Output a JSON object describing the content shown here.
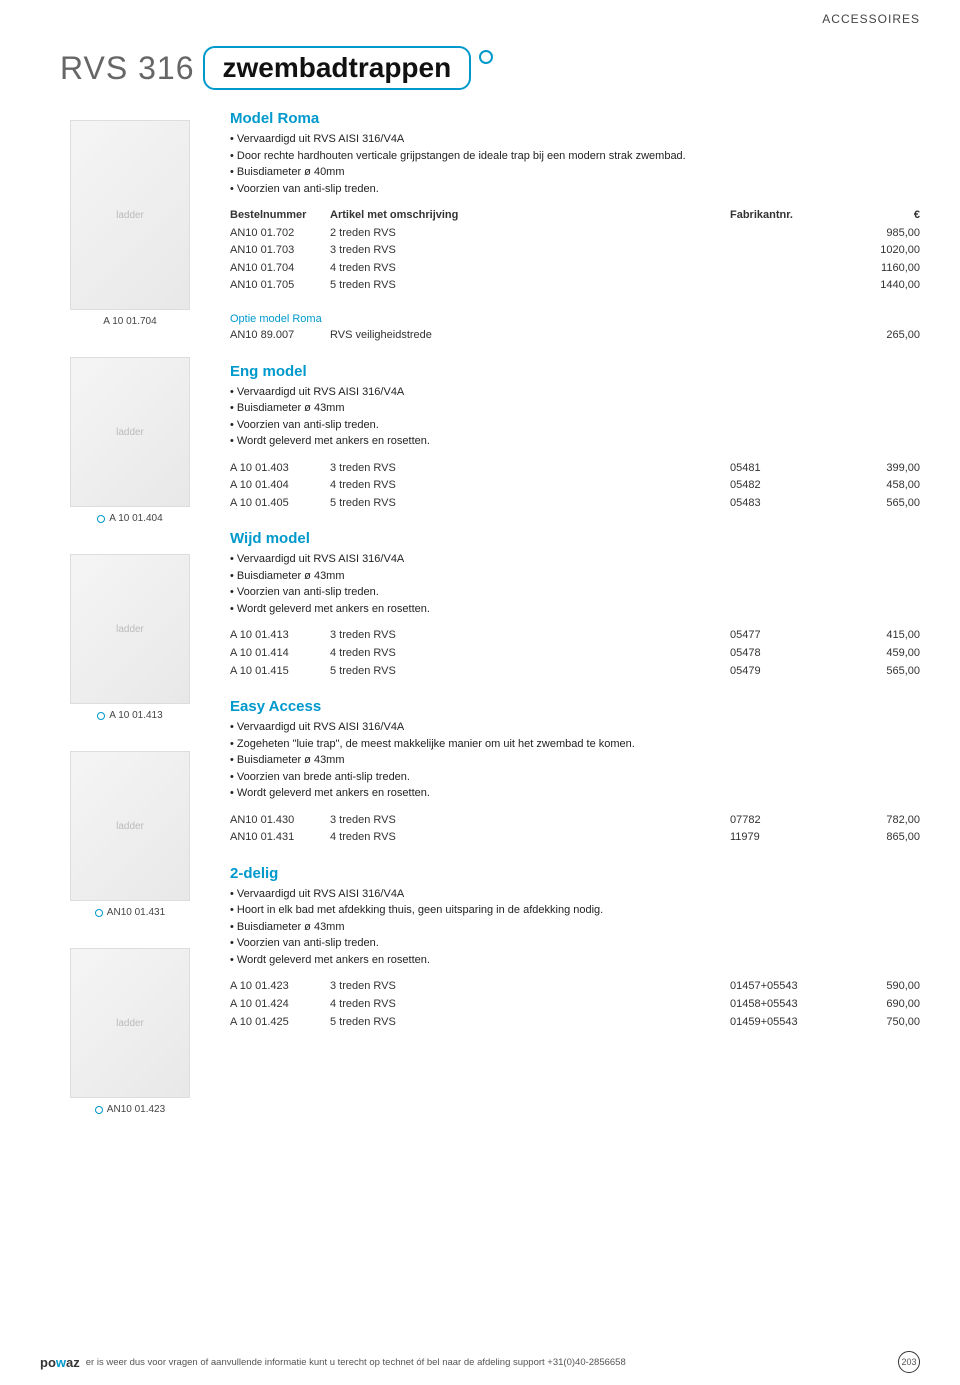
{
  "header": {
    "category": "ACCESSOIRES"
  },
  "title": {
    "prefix": "RVS 316",
    "main": "zwembadtrappen"
  },
  "images": [
    {
      "label": "A 10 01.704",
      "show_circle": false
    },
    {
      "label": "A 10 01.404",
      "show_circle": true
    },
    {
      "label": "A 10 01.413",
      "show_circle": true
    },
    {
      "label": "AN10 01.431",
      "show_circle": true
    },
    {
      "label": "AN10 01.423",
      "show_circle": true
    }
  ],
  "table_header": {
    "col1": "Bestelnummer",
    "col2": "Artikel met omschrijving",
    "col3": "Fabrikantnr.",
    "col4": "€"
  },
  "sections": [
    {
      "title": "Model Roma",
      "bullets": [
        "Vervaardigd uit RVS AISI 316/V4A",
        "Door rechte hardhouten verticale grijpstangen de ideale trap bij een modern strak zwembad.",
        "Buisdiameter ø 40mm",
        "Voorzien van anti-slip treden."
      ],
      "show_header": true,
      "rows": [
        {
          "c1": "AN10 01.702",
          "c2": "2 treden RVS",
          "c3": "",
          "c4": "985,00"
        },
        {
          "c1": "AN10 01.703",
          "c2": "3 treden RVS",
          "c3": "",
          "c4": "1020,00"
        },
        {
          "c1": "AN10 01.704",
          "c2": "4 treden RVS",
          "c3": "",
          "c4": "1160,00"
        },
        {
          "c1": "AN10 01.705",
          "c2": "5 treden RVS",
          "c3": "",
          "c4": "1440,00"
        }
      ],
      "optie": {
        "label": "Optie model Roma",
        "row": {
          "c1": "AN10 89.007",
          "c2": "RVS veiligheidstrede",
          "c3": "",
          "c4": "265,00"
        }
      }
    },
    {
      "title": "Eng model",
      "bullets": [
        "Vervaardigd uit RVS AISI 316/V4A",
        "Buisdiameter ø 43mm",
        "Voorzien van anti-slip treden.",
        "Wordt geleverd met ankers en rosetten."
      ],
      "rows": [
        {
          "c1": "A 10 01.403",
          "c2": "3 treden RVS",
          "c3": "05481",
          "c4": "399,00"
        },
        {
          "c1": "A 10 01.404",
          "c2": "4 treden RVS",
          "c3": "05482",
          "c4": "458,00"
        },
        {
          "c1": "A 10 01.405",
          "c2": "5 treden RVS",
          "c3": "05483",
          "c4": "565,00"
        }
      ]
    },
    {
      "title": "Wijd model",
      "bullets": [
        "Vervaardigd uit RVS AISI 316/V4A",
        "Buisdiameter ø 43mm",
        "Voorzien van anti-slip treden.",
        "Wordt geleverd met ankers en rosetten."
      ],
      "rows": [
        {
          "c1": "A 10 01.413",
          "c2": "3 treden RVS",
          "c3": "05477",
          "c4": "415,00"
        },
        {
          "c1": "A 10 01.414",
          "c2": "4 treden RVS",
          "c3": "05478",
          "c4": "459,00"
        },
        {
          "c1": "A 10 01.415",
          "c2": "5 treden RVS",
          "c3": "05479",
          "c4": "565,00"
        }
      ]
    },
    {
      "title": "Easy Access",
      "bullets": [
        "Vervaardigd uit RVS AISI 316/V4A",
        "Zogeheten \"luie trap\", de meest makkelijke manier om uit het zwembad te komen.",
        "Buisdiameter ø 43mm",
        "Voorzien van brede anti-slip treden.",
        "Wordt geleverd met ankers en rosetten."
      ],
      "rows": [
        {
          "c1": "AN10 01.430",
          "c2": "3 treden RVS",
          "c3": "07782",
          "c4": "782,00"
        },
        {
          "c1": "AN10 01.431",
          "c2": "4 treden RVS",
          "c3": "11979",
          "c4": "865,00"
        }
      ]
    },
    {
      "title": "2-delig",
      "bullets": [
        "Vervaardigd uit RVS AISI 316/V4A",
        "Hoort in elk bad met afdekking thuis, geen uitsparing in de afdekking nodig.",
        "Buisdiameter ø 43mm",
        "Voorzien van anti-slip treden.",
        "Wordt geleverd met ankers en rosetten."
      ],
      "rows": [
        {
          "c1": "A 10 01.423",
          "c2": "3 treden RVS",
          "c3": "01457+05543",
          "c4": "590,00"
        },
        {
          "c1": "A 10 01.424",
          "c2": "4 treden RVS",
          "c3": "01458+05543",
          "c4": "690,00"
        },
        {
          "c1": "A 10 01.425",
          "c2": "5 treden RVS",
          "c3": "01459+05543",
          "c4": "750,00"
        }
      ]
    }
  ],
  "footer": {
    "logo_pre": "po",
    "logo_mid": "w",
    "logo_post": "az",
    "text": "er is weer dus voor vragen of aanvullende informatie kunt u terecht op technet óf bel naar de afdeling support +31(0)40-2856658",
    "page": "203"
  },
  "colors": {
    "accent": "#0099cc",
    "text": "#333333",
    "bg": "#ffffff"
  }
}
